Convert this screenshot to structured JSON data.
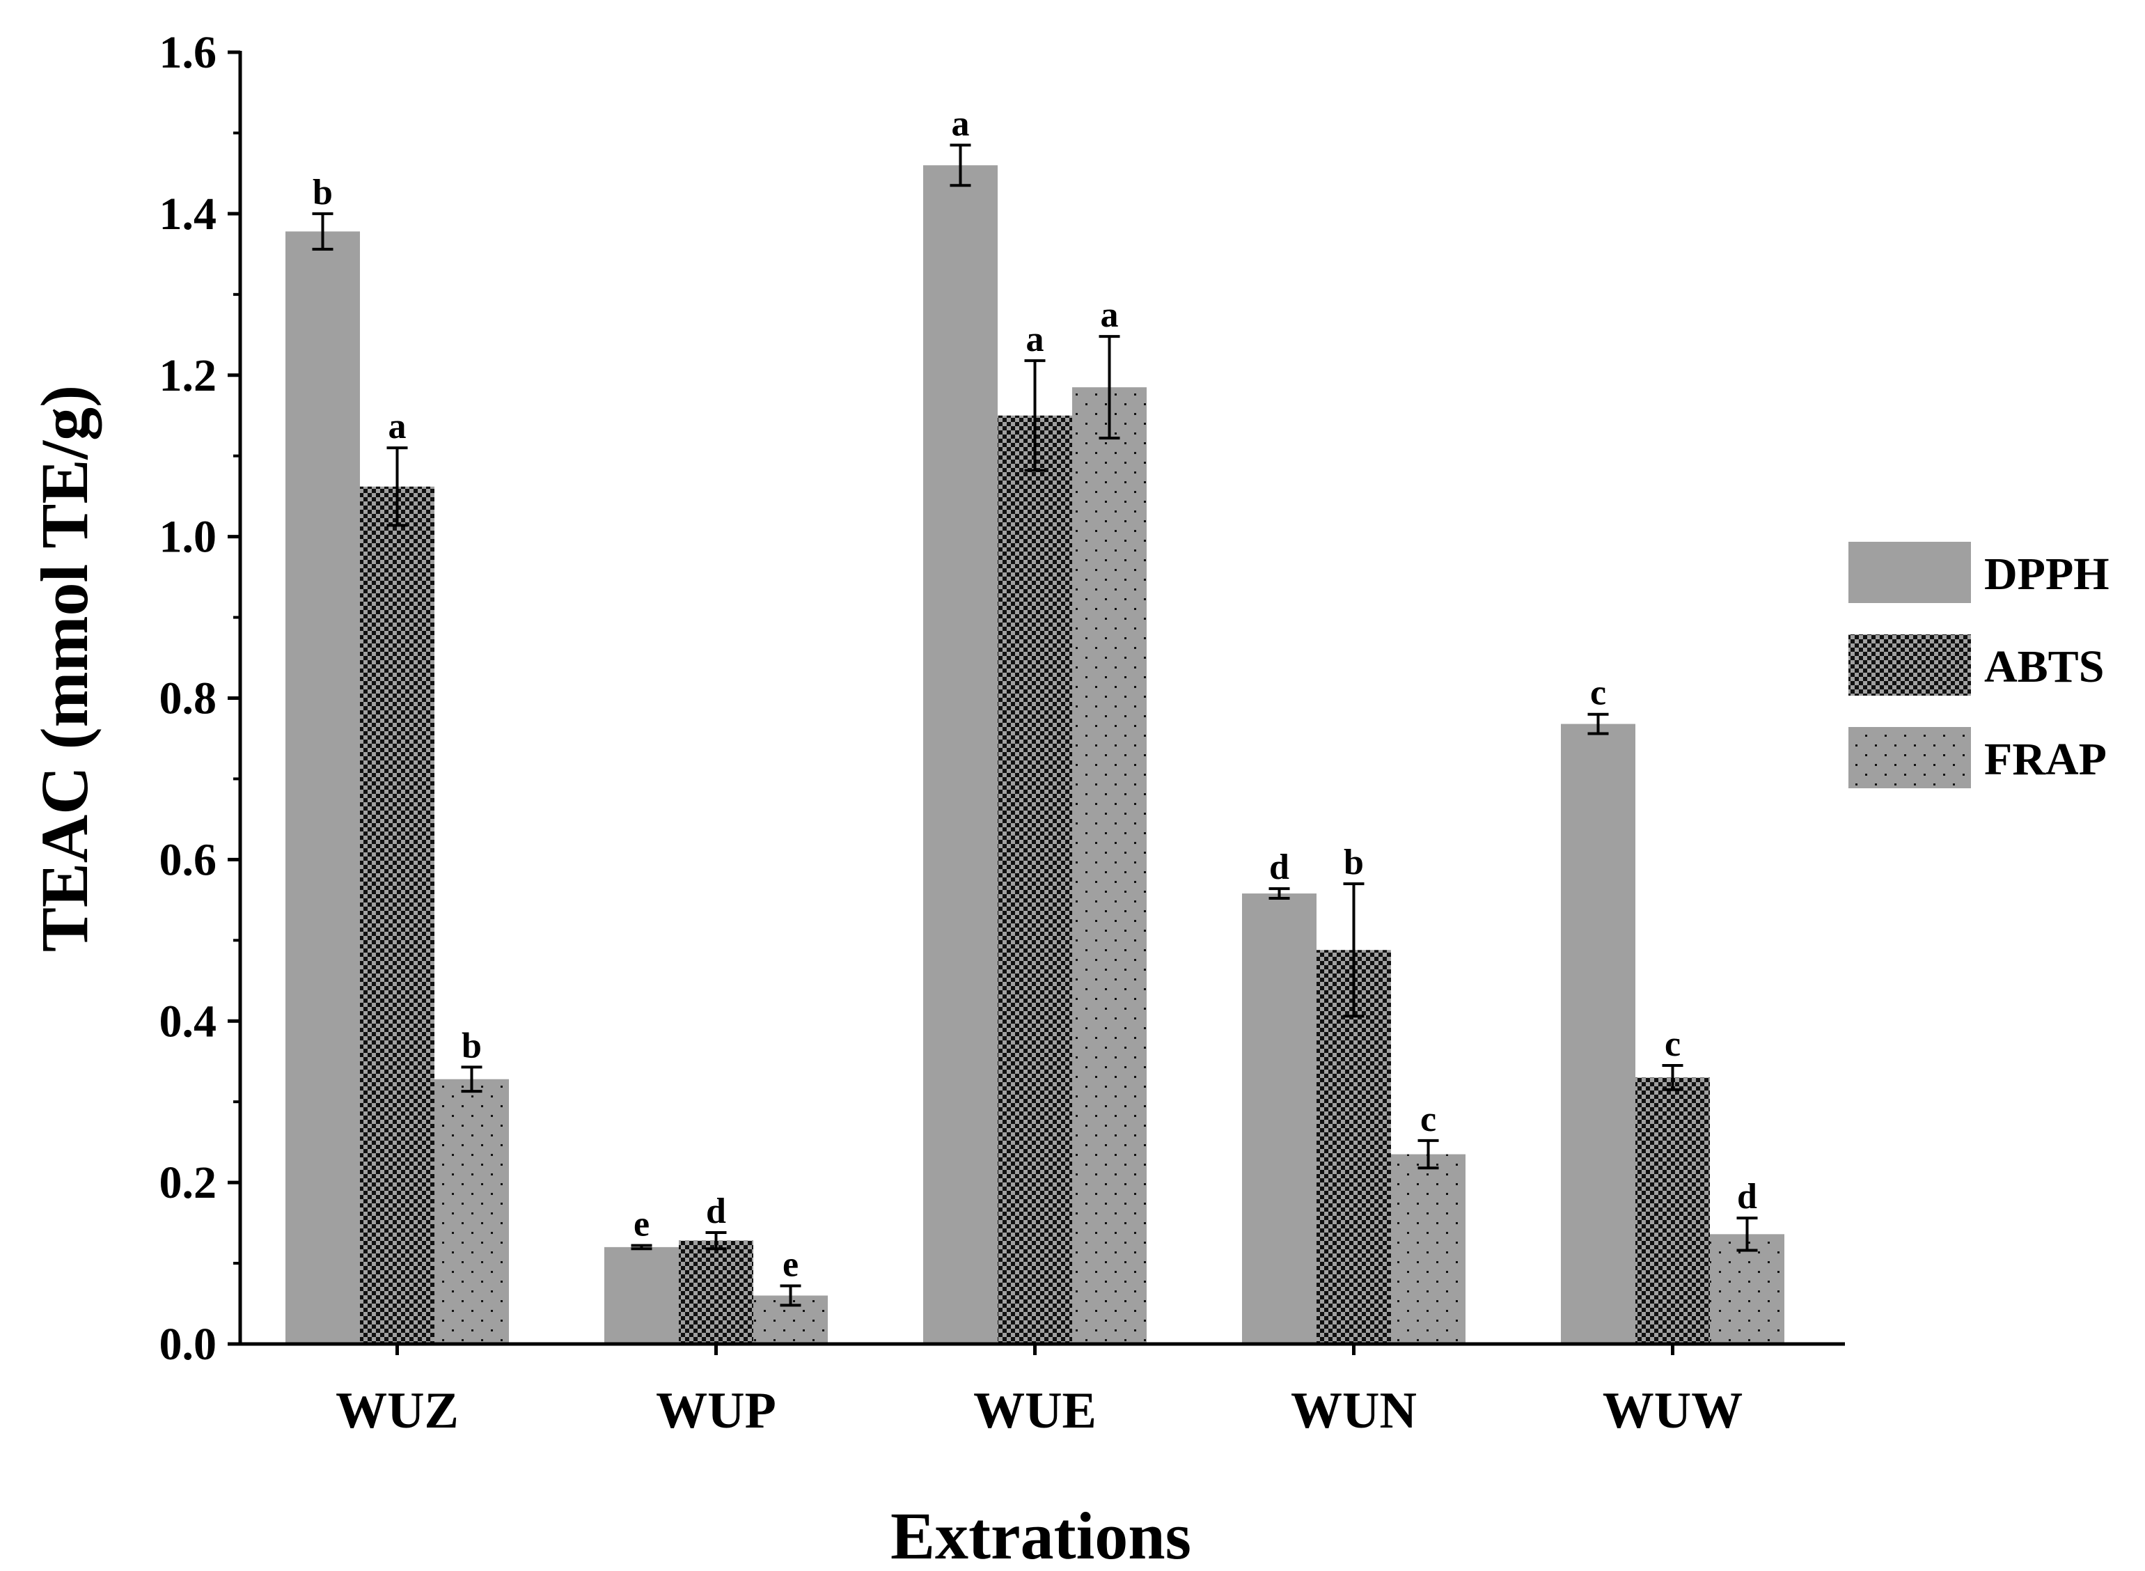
{
  "chart_data": {
    "type": "bar",
    "title": "",
    "xlabel": "Extrations",
    "ylabel": "TEAC (mmol TE/g)",
    "ylim": [
      0,
      1.6
    ],
    "yticks": [
      "0.0",
      "0.2",
      "0.4",
      "0.6",
      "0.8",
      "1.0",
      "1.2",
      "1.4",
      "1.6"
    ],
    "categories": [
      "WUZ",
      "WUP",
      "WUE",
      "WUN",
      "WUW"
    ],
    "legend_position": "right",
    "grid": false,
    "series": [
      {
        "name": "DPPH",
        "color": "#a0a0a0",
        "pattern": "solid",
        "values": [
          1.378,
          0.12,
          1.46,
          0.558,
          0.768
        ],
        "errors": [
          0.022,
          0.002,
          0.025,
          0.006,
          0.012
        ],
        "letters": [
          "b",
          "e",
          "a",
          "d",
          "c"
        ]
      },
      {
        "name": "ABTS",
        "color": "#a0a0a0",
        "pattern": "checker",
        "values": [
          1.062,
          0.128,
          1.15,
          0.488,
          0.33
        ],
        "errors": [
          0.048,
          0.01,
          0.068,
          0.082,
          0.015
        ],
        "letters": [
          "a",
          "d",
          "a",
          "b",
          "c"
        ]
      },
      {
        "name": "FRAP",
        "color": "#a0a0a0",
        "pattern": "dots",
        "values": [
          0.328,
          0.06,
          1.185,
          0.235,
          0.136
        ],
        "errors": [
          0.015,
          0.012,
          0.063,
          0.017,
          0.02
        ],
        "letters": [
          "b",
          "e",
          "a",
          "c",
          "d"
        ]
      }
    ]
  }
}
